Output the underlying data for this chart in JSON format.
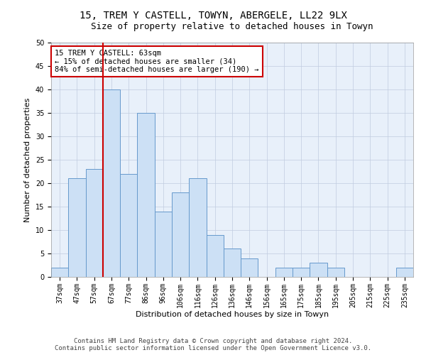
{
  "title_line1": "15, TREM Y CASTELL, TOWYN, ABERGELE, LL22 9LX",
  "title_line2": "Size of property relative to detached houses in Towyn",
  "xlabel": "Distribution of detached houses by size in Towyn",
  "ylabel": "Number of detached properties",
  "categories": [
    "37sqm",
    "47sqm",
    "57sqm",
    "67sqm",
    "77sqm",
    "86sqm",
    "96sqm",
    "106sqm",
    "116sqm",
    "126sqm",
    "136sqm",
    "146sqm",
    "156sqm",
    "165sqm",
    "175sqm",
    "185sqm",
    "195sqm",
    "205sqm",
    "215sqm",
    "225sqm",
    "235sqm"
  ],
  "values": [
    2,
    21,
    23,
    40,
    22,
    35,
    14,
    18,
    21,
    9,
    6,
    4,
    0,
    2,
    2,
    3,
    2,
    0,
    0,
    0,
    2
  ],
  "bar_color": "#cce0f5",
  "bar_edge_color": "#6699cc",
  "vline_color": "#cc0000",
  "annotation_text": "15 TREM Y CASTELL: 63sqm\n← 15% of detached houses are smaller (34)\n84% of semi-detached houses are larger (190) →",
  "annotation_box_color": "#ffffff",
  "annotation_box_edge": "#cc0000",
  "ylim": [
    0,
    50
  ],
  "yticks": [
    0,
    5,
    10,
    15,
    20,
    25,
    30,
    35,
    40,
    45,
    50
  ],
  "footer_line1": "Contains HM Land Registry data © Crown copyright and database right 2024.",
  "footer_line2": "Contains public sector information licensed under the Open Government Licence v3.0.",
  "bg_color": "#ffffff",
  "plot_bg_color": "#e8f0fa",
  "grid_color": "#c0cce0",
  "title1_fontsize": 10,
  "title2_fontsize": 9,
  "ylabel_fontsize": 8,
  "xlabel_fontsize": 8,
  "tick_fontsize": 7,
  "annotation_fontsize": 7.5,
  "footer_fontsize": 6.5
}
